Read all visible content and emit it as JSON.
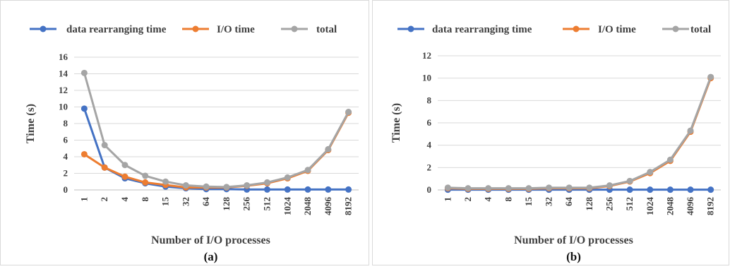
{
  "chart_data": [
    {
      "type": "line",
      "caption": "(a)",
      "xlabel": "Number of I/O processes",
      "ylabel": "Time (s)",
      "ylim": [
        0,
        16
      ],
      "yticks": [
        0,
        2,
        4,
        6,
        8,
        10,
        12,
        14,
        16
      ],
      "grid": true,
      "legend_position": "top",
      "categories": [
        "1",
        "2",
        "4",
        "8",
        "15",
        "32",
        "64",
        "128",
        "256",
        "512",
        "1024",
        "2048",
        "4096",
        "8192"
      ],
      "series": [
        {
          "name": "data rearranging time",
          "color": "#4472C4",
          "values": [
            9.8,
            2.7,
            1.4,
            0.8,
            0.4,
            0.2,
            0.1,
            0.1,
            0.05,
            0.05,
            0.05,
            0.05,
            0.05,
            0.05
          ]
        },
        {
          "name": "I/O time",
          "color": "#ED7D31",
          "values": [
            4.3,
            2.7,
            1.6,
            0.9,
            0.6,
            0.3,
            0.3,
            0.3,
            0.5,
            0.8,
            1.4,
            2.3,
            4.8,
            9.3
          ]
        },
        {
          "name": "total",
          "color": "#A5A5A5",
          "values": [
            14.1,
            5.4,
            3.0,
            1.7,
            1.0,
            0.55,
            0.4,
            0.35,
            0.55,
            0.9,
            1.5,
            2.4,
            4.9,
            9.4
          ]
        }
      ]
    },
    {
      "type": "line",
      "caption": "(b)",
      "xlabel": "Number of I/O processes",
      "ylabel": "Time (s)",
      "ylim": [
        0,
        12
      ],
      "yticks": [
        0,
        2,
        4,
        6,
        8,
        10,
        12
      ],
      "grid": true,
      "legend_position": "top",
      "categories": [
        "1",
        "2",
        "4",
        "8",
        "15",
        "32",
        "64",
        "128",
        "256",
        "512",
        "1024",
        "2048",
        "4096",
        "8192"
      ],
      "series": [
        {
          "name": "data rearranging time",
          "color": "#4472C4",
          "values": [
            0.02,
            0.02,
            0.02,
            0.02,
            0.02,
            0.02,
            0.02,
            0.02,
            0.02,
            0.02,
            0.02,
            0.02,
            0.02,
            0.02
          ]
        },
        {
          "name": "I/O time",
          "color": "#ED7D31",
          "values": [
            0.15,
            0.1,
            0.1,
            0.1,
            0.1,
            0.15,
            0.15,
            0.15,
            0.35,
            0.75,
            1.5,
            2.6,
            5.2,
            10.0
          ]
        },
        {
          "name": "total",
          "color": "#A5A5A5",
          "values": [
            0.2,
            0.15,
            0.15,
            0.15,
            0.15,
            0.2,
            0.2,
            0.2,
            0.4,
            0.8,
            1.6,
            2.7,
            5.3,
            10.1
          ]
        }
      ]
    }
  ]
}
